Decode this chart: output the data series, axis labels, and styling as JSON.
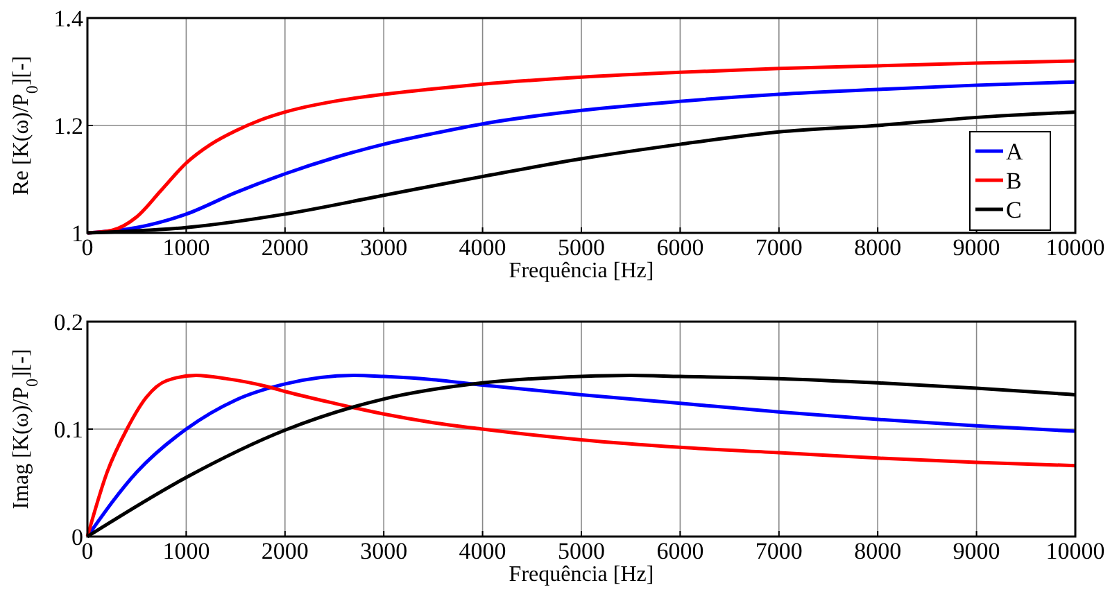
{
  "chart_data": [
    {
      "type": "line",
      "xlabel": "Frequência [Hz]",
      "ylabel": "Re [K(ω)/P$_{0}$][-]",
      "xlim": [
        0,
        10000
      ],
      "xticks": [
        0,
        1000,
        2000,
        3000,
        4000,
        5000,
        6000,
        7000,
        8000,
        9000,
        10000
      ],
      "ylim": [
        1,
        1.4
      ],
      "yticks": [
        1,
        1.2,
        1.4
      ],
      "grid": true,
      "legend": "bottom right",
      "line_style": "solid",
      "marker": "none",
      "series": [
        {
          "name": "A",
          "color": "#0000ff",
          "x": [
            0,
            500,
            1000,
            1500,
            2000,
            2500,
            3000,
            3500,
            4000,
            5000,
            6000,
            7000,
            8000,
            9000,
            10000
          ],
          "values": [
            1.0,
            1.01,
            1.035,
            1.075,
            1.11,
            1.14,
            1.165,
            1.185,
            1.203,
            1.228,
            1.245,
            1.258,
            1.267,
            1.275,
            1.281
          ]
        },
        {
          "name": "B",
          "color": "#ff0000",
          "x": [
            0,
            250,
            500,
            750,
            1000,
            1250,
            1500,
            1750,
            2000,
            2500,
            3000,
            3500,
            4000,
            5000,
            6000,
            7000,
            8000,
            9000,
            10000
          ],
          "values": [
            1.0,
            1.005,
            1.03,
            1.08,
            1.13,
            1.165,
            1.19,
            1.21,
            1.225,
            1.245,
            1.258,
            1.268,
            1.277,
            1.29,
            1.299,
            1.306,
            1.311,
            1.316,
            1.32
          ]
        },
        {
          "name": "C",
          "color": "#000000",
          "x": [
            0,
            1000,
            2000,
            3000,
            4000,
            5000,
            6000,
            7000,
            8000,
            9000,
            10000
          ],
          "values": [
            1.0,
            1.01,
            1.035,
            1.07,
            1.105,
            1.138,
            1.165,
            1.188,
            1.2,
            1.215,
            1.225
          ]
        }
      ]
    },
    {
      "type": "line",
      "xlabel": "Frequência [Hz]",
      "ylabel": "Imag [K(ω)/P$_{0}$][-]",
      "xlim": [
        0,
        10000
      ],
      "xticks": [
        0,
        1000,
        2000,
        3000,
        4000,
        5000,
        6000,
        7000,
        8000,
        9000,
        10000
      ],
      "ylim": [
        0,
        0.2
      ],
      "yticks": [
        0,
        0.1,
        0.2
      ],
      "grid": true,
      "line_style": "solid",
      "marker": "none",
      "series": [
        {
          "color": "#0000ff",
          "x": [
            0,
            500,
            1000,
            1500,
            2000,
            2700,
            3000,
            3500,
            4000,
            5000,
            6000,
            7000,
            8000,
            9000,
            10000
          ],
          "values": [
            0,
            0.06,
            0.1,
            0.127,
            0.142,
            0.15,
            0.149,
            0.146,
            0.141,
            0.132,
            0.124,
            0.116,
            0.109,
            0.103,
            0.098
          ]
        },
        {
          "color": "#ff0000",
          "x": [
            0,
            200,
            400,
            600,
            800,
            1100,
            1400,
            1800,
            2000,
            2500,
            3000,
            3500,
            4000,
            5000,
            6000,
            7000,
            8000,
            9000,
            10000
          ],
          "values": [
            0,
            0.06,
            0.1,
            0.13,
            0.145,
            0.15,
            0.147,
            0.14,
            0.135,
            0.124,
            0.114,
            0.106,
            0.1,
            0.09,
            0.083,
            0.078,
            0.073,
            0.069,
            0.066
          ]
        },
        {
          "color": "#000000",
          "x": [
            0,
            1000,
            2000,
            3000,
            4000,
            5000,
            5500,
            6000,
            7000,
            8000,
            9000,
            10000
          ],
          "values": [
            0,
            0.055,
            0.099,
            0.128,
            0.143,
            0.149,
            0.15,
            0.149,
            0.147,
            0.143,
            0.138,
            0.132
          ]
        }
      ]
    }
  ]
}
